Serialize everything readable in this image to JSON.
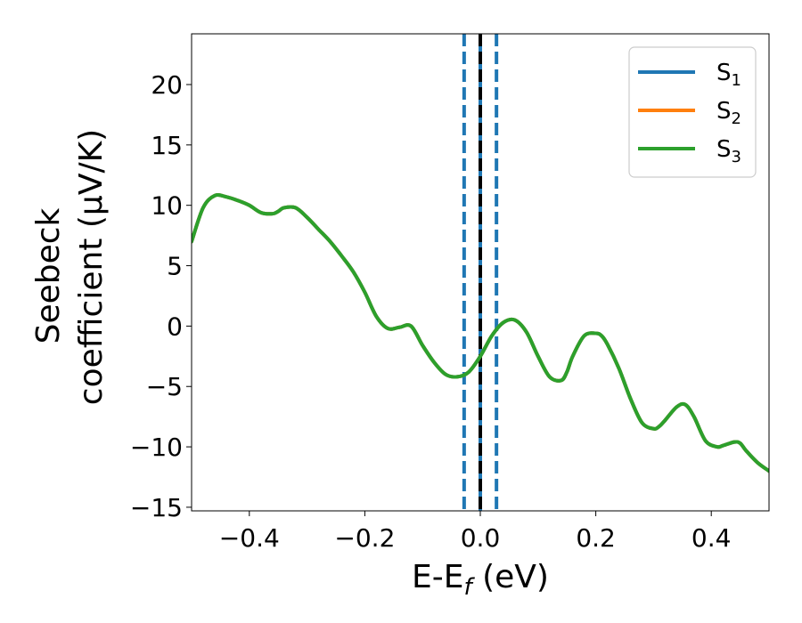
{
  "chart_data": {
    "type": "line",
    "xlabel": "E-E",
    "xlabel_sub": "f",
    "xlabel_unit": " (eV)",
    "ylabel_line1": "Seebeck",
    "ylabel_line2": "coefficient  (μV/K)",
    "xlim": [
      -0.5,
      0.5
    ],
    "ylim": [
      -15.3,
      24.2
    ],
    "x_ticks": [
      -0.4,
      -0.2,
      0.0,
      0.2,
      0.4
    ],
    "x_tick_labels": [
      "−0.4",
      "−0.2",
      "0.0",
      "0.2",
      "0.4"
    ],
    "y_ticks": [
      -15,
      -10,
      -5,
      0,
      5,
      10,
      15,
      20
    ],
    "y_tick_labels": [
      "−15",
      "−10",
      "−5",
      "0",
      "5",
      "10",
      "15",
      "20"
    ],
    "legend_position": "top-right",
    "grid": false,
    "series": [
      {
        "name": "S",
        "sub": "1",
        "color": "#1f77b4",
        "x": [
          -0.5,
          -0.48,
          -0.46,
          -0.44,
          -0.42,
          -0.4,
          -0.38,
          -0.36,
          -0.35,
          -0.34,
          -0.32,
          -0.3,
          -0.28,
          -0.26,
          -0.24,
          -0.22,
          -0.2,
          -0.18,
          -0.16,
          -0.14,
          -0.12,
          -0.1,
          -0.08,
          -0.06,
          -0.04,
          -0.02,
          0.0,
          0.02,
          0.04,
          0.06,
          0.08,
          0.1,
          0.12,
          0.14,
          0.15,
          0.16,
          0.18,
          0.2,
          0.21,
          0.22,
          0.24,
          0.26,
          0.28,
          0.3,
          0.31,
          0.32,
          0.34,
          0.355,
          0.37,
          0.39,
          0.41,
          0.42,
          0.44,
          0.45,
          0.46,
          0.48,
          0.5
        ],
        "y": [
          7.0,
          9.8,
          10.8,
          10.7,
          10.4,
          10.0,
          9.4,
          9.3,
          9.5,
          9.8,
          9.8,
          9.0,
          8.0,
          7.0,
          5.8,
          4.5,
          2.8,
          0.8,
          -0.2,
          -0.1,
          0.0,
          -1.6,
          -3.0,
          -4.0,
          -4.2,
          -3.8,
          -2.5,
          -0.8,
          0.3,
          0.5,
          -0.5,
          -2.5,
          -4.2,
          -4.5,
          -3.8,
          -2.5,
          -0.8,
          -0.6,
          -0.8,
          -1.5,
          -3.5,
          -6.0,
          -8.0,
          -8.5,
          -8.3,
          -7.8,
          -6.7,
          -6.5,
          -7.5,
          -9.5,
          -10.0,
          -9.9,
          -9.6,
          -9.7,
          -10.3,
          -11.3,
          -12.0
        ]
      },
      {
        "name": "S",
        "sub": "2",
        "color": "#ff7f0e",
        "x": [
          -0.5,
          -0.48,
          -0.46,
          -0.44,
          -0.42,
          -0.4,
          -0.38,
          -0.36,
          -0.35,
          -0.34,
          -0.32,
          -0.3,
          -0.28,
          -0.26,
          -0.24,
          -0.22,
          -0.2,
          -0.18,
          -0.16,
          -0.14,
          -0.12,
          -0.1,
          -0.08,
          -0.06,
          -0.04,
          -0.02,
          0.0,
          0.02,
          0.04,
          0.06,
          0.08,
          0.1,
          0.12,
          0.14,
          0.15,
          0.16,
          0.18,
          0.2,
          0.21,
          0.22,
          0.24,
          0.26,
          0.28,
          0.3,
          0.31,
          0.32,
          0.34,
          0.355,
          0.37,
          0.39,
          0.41,
          0.42,
          0.44,
          0.45,
          0.46,
          0.48,
          0.5
        ],
        "y": [
          7.0,
          9.8,
          10.8,
          10.7,
          10.4,
          10.0,
          9.4,
          9.3,
          9.5,
          9.8,
          9.8,
          9.0,
          8.0,
          7.0,
          5.8,
          4.5,
          2.8,
          0.8,
          -0.2,
          -0.1,
          0.0,
          -1.6,
          -3.0,
          -4.0,
          -4.2,
          -3.8,
          -2.5,
          -0.8,
          0.3,
          0.5,
          -0.5,
          -2.5,
          -4.2,
          -4.5,
          -3.8,
          -2.5,
          -0.8,
          -0.6,
          -0.8,
          -1.5,
          -3.5,
          -6.0,
          -8.0,
          -8.5,
          -8.3,
          -7.8,
          -6.7,
          -6.5,
          -7.5,
          -9.5,
          -10.0,
          -9.9,
          -9.6,
          -9.7,
          -10.3,
          -11.3,
          -12.0
        ]
      },
      {
        "name": "S",
        "sub": "3",
        "color": "#2ca02c",
        "x": [
          -0.5,
          -0.48,
          -0.46,
          -0.44,
          -0.42,
          -0.4,
          -0.38,
          -0.36,
          -0.35,
          -0.34,
          -0.32,
          -0.3,
          -0.28,
          -0.26,
          -0.24,
          -0.22,
          -0.2,
          -0.18,
          -0.16,
          -0.14,
          -0.12,
          -0.1,
          -0.08,
          -0.06,
          -0.04,
          -0.02,
          0.0,
          0.02,
          0.04,
          0.06,
          0.08,
          0.1,
          0.12,
          0.14,
          0.15,
          0.16,
          0.18,
          0.2,
          0.21,
          0.22,
          0.24,
          0.26,
          0.28,
          0.3,
          0.31,
          0.32,
          0.34,
          0.355,
          0.37,
          0.39,
          0.41,
          0.42,
          0.44,
          0.45,
          0.46,
          0.48,
          0.5
        ],
        "y": [
          7.0,
          9.8,
          10.8,
          10.7,
          10.4,
          10.0,
          9.4,
          9.3,
          9.5,
          9.8,
          9.8,
          9.0,
          8.0,
          7.0,
          5.8,
          4.5,
          2.8,
          0.8,
          -0.2,
          -0.1,
          0.0,
          -1.6,
          -3.0,
          -4.0,
          -4.2,
          -3.8,
          -2.5,
          -0.8,
          0.3,
          0.5,
          -0.5,
          -2.5,
          -4.2,
          -4.5,
          -3.8,
          -2.5,
          -0.8,
          -0.6,
          -0.8,
          -1.5,
          -3.5,
          -6.0,
          -8.0,
          -8.5,
          -8.3,
          -7.8,
          -6.7,
          -6.5,
          -7.5,
          -9.5,
          -10.0,
          -9.9,
          -9.6,
          -9.7,
          -10.3,
          -11.3,
          -12.0
        ]
      }
    ],
    "vertical_lines": [
      {
        "x": -0.028,
        "style": "dashed",
        "color": "#1f77b4"
      },
      {
        "x": 0.028,
        "style": "dashed",
        "color": "#1f77b4"
      },
      {
        "x": 0.0,
        "style": "solid",
        "color": "#1f77b4"
      },
      {
        "x": 0.0,
        "style": "dashed",
        "color": "#000000"
      }
    ]
  }
}
